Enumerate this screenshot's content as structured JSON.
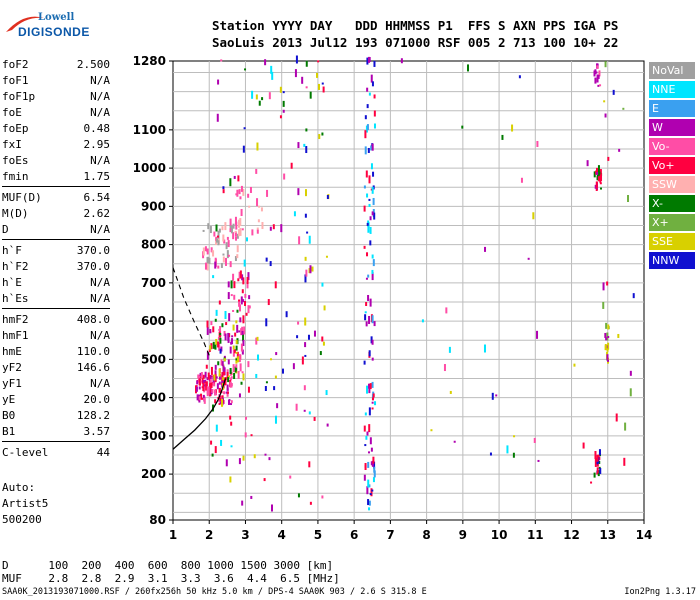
{
  "logo": {
    "line1": "Lowell",
    "line2": "DIGISONDE"
  },
  "header": {
    "labels": "Station YYYY DAY   DDD HHMMSS P1  FFS S AXN PPS IGA PS",
    "values": "SaoLuis 2013 Jul12 193 071000 RSF 005 2 713 100 10+ 22"
  },
  "params": [
    {
      "name": "foF2",
      "value": "2.500"
    },
    {
      "name": "foF1",
      "value": "N/A"
    },
    {
      "name": "foF1p",
      "value": "N/A"
    },
    {
      "name": "foE",
      "value": "N/A"
    },
    {
      "name": "foEp",
      "value": "0.48"
    },
    {
      "name": "fxI",
      "value": "2.95"
    },
    {
      "name": "foEs",
      "value": "N/A"
    },
    {
      "name": "fmin",
      "value": "1.75"
    },
    {
      "sep": true
    },
    {
      "name": "MUF(D)",
      "value": "6.54"
    },
    {
      "name": "M(D)",
      "value": "2.62"
    },
    {
      "name": "D",
      "value": "N/A"
    },
    {
      "sep": true
    },
    {
      "name": "h`F",
      "value": "370.0"
    },
    {
      "name": "h`F2",
      "value": "370.0"
    },
    {
      "name": "h`E",
      "value": "N/A"
    },
    {
      "name": "h`Es",
      "value": "N/A"
    },
    {
      "sep": true
    },
    {
      "name": "hmF2",
      "value": "408.0"
    },
    {
      "name": "hmF1",
      "value": "N/A"
    },
    {
      "name": "hmE",
      "value": "110.0"
    },
    {
      "name": "yF2",
      "value": "146.6"
    },
    {
      "name": "yF1",
      "value": "N/A"
    },
    {
      "name": "yE",
      "value": "20.0"
    },
    {
      "name": "B0",
      "value": "128.2"
    },
    {
      "name": "B1",
      "value": "3.57"
    },
    {
      "sep": true
    },
    {
      "name": "C-level",
      "value": "44"
    }
  ],
  "auto": {
    "line1": "Auto:",
    "line2": "Artist5",
    "line3": "500200"
  },
  "legend": [
    {
      "label": "NoVal",
      "color": "#a0a0a0"
    },
    {
      "label": "NNE",
      "color": "#00e5ff"
    },
    {
      "label": "E",
      "color": "#3aa0f0"
    },
    {
      "label": "W",
      "color": "#b000b0"
    },
    {
      "label": "Vo-",
      "color": "#ff4da6"
    },
    {
      "label": "Vo+",
      "color": "#ff0040"
    },
    {
      "label": "SSW",
      "color": "#ffb0b0"
    },
    {
      "label": "X-",
      "color": "#007a00"
    },
    {
      "label": "X+",
      "color": "#70b040"
    },
    {
      "label": "SSE",
      "color": "#d8d000"
    },
    {
      "label": "NNW",
      "color": "#1010d0"
    }
  ],
  "footer": {
    "line1": "D      100  200  400  600  800 1000 1500 3000 [km]",
    "line2": "MUF    2.8  2.8  2.9  3.1  3.3  3.6  4.4  6.5 [MHz]",
    "line3": "SAA0K_2013193071000.RSF / 260fx256h 50 kHz 5.0 km / DPS-4 SAA0K 903 / 2.6 S 315.8 E",
    "version": "Ion2Png 1.3.17"
  },
  "chart_data": {
    "type": "scatter",
    "title": "",
    "xlabel": "",
    "ylabel": "",
    "xlim": [
      1,
      14
    ],
    "ylim": [
      80,
      1280
    ],
    "xticks": [
      1,
      2,
      3,
      4,
      5,
      6,
      7,
      8,
      9,
      10,
      11,
      12,
      13,
      14
    ],
    "yticks": [
      80,
      200,
      300,
      400,
      500,
      600,
      700,
      800,
      900,
      1000,
      1100,
      1280
    ],
    "grid": true,
    "legend_position": "right",
    "profile_curve": {
      "x": [
        1.0,
        1.3,
        1.6,
        1.9,
        2.1,
        2.25,
        2.35,
        2.45
      ],
      "y": [
        265,
        290,
        315,
        345,
        370,
        395,
        420,
        450
      ]
    },
    "dashed_curve": {
      "x": [
        1.0,
        1.3,
        1.6,
        1.85,
        2.0
      ],
      "y": [
        740,
        660,
        595,
        545,
        510
      ]
    },
    "echo_clusters": [
      {
        "x": [
          1.6,
          2.6
        ],
        "y": [
          380,
          460
        ],
        "density": 120,
        "colors": [
          "#ff0040",
          "#ff4da6",
          "#b000b0"
        ]
      },
      {
        "x": [
          1.9,
          3.0
        ],
        "y": [
          420,
          600
        ],
        "density": 90,
        "colors": [
          "#b000b0",
          "#ff0040",
          "#007a00",
          "#ff4da6",
          "#d8d000"
        ]
      },
      {
        "x": [
          2.5,
          3.2
        ],
        "y": [
          600,
          720
        ],
        "density": 25,
        "colors": [
          "#b000b0",
          "#ff4da6",
          "#ff0040"
        ]
      },
      {
        "x": [
          1.8,
          2.8
        ],
        "y": [
          730,
          850
        ],
        "density": 55,
        "colors": [
          "#ffb0b0",
          "#ff4da6",
          "#a0a0a0"
        ]
      },
      {
        "x": [
          2.7,
          3.5
        ],
        "y": [
          820,
          940
        ],
        "density": 25,
        "colors": [
          "#ffb0b0",
          "#ff4da6"
        ]
      },
      {
        "x": [
          6.25,
          6.55
        ],
        "y": [
          90,
          1280
        ],
        "density": 110,
        "colors": [
          "#00e5ff",
          "#3aa0f0",
          "#b000b0",
          "#ff0040",
          "#1010d0"
        ]
      },
      {
        "x": [
          12.6,
          12.8
        ],
        "y": [
          940,
          990
        ],
        "density": 25,
        "colors": [
          "#ff0040",
          "#007a00",
          "#b000b0"
        ]
      },
      {
        "x": [
          12.6,
          12.8
        ],
        "y": [
          190,
          250
        ],
        "density": 20,
        "colors": [
          "#ff0040",
          "#007a00",
          "#1010d0"
        ]
      },
      {
        "x": [
          12.9,
          13.0
        ],
        "y": [
          480,
          580
        ],
        "density": 18,
        "colors": [
          "#d8d000",
          "#70b040",
          "#b000b0"
        ]
      },
      {
        "x": [
          12.6,
          12.8
        ],
        "y": [
          1200,
          1270
        ],
        "density": 15,
        "colors": [
          "#ff4da6",
          "#b000b0"
        ]
      },
      {
        "x": [
          2.0,
          5.3
        ],
        "y": [
          90,
          1280
        ],
        "density": 160,
        "colors": [
          "#1010d0",
          "#b000b0",
          "#ff0040",
          "#00e5ff",
          "#007a00",
          "#d8d000",
          "#ff4da6"
        ]
      },
      {
        "x": [
          6.9,
          11.2
        ],
        "y": [
          150,
          1280
        ],
        "density": 28,
        "colors": [
          "#1010d0",
          "#b000b0",
          "#00e5ff",
          "#d8d000",
          "#ff4da6",
          "#007a00"
        ]
      },
      {
        "x": [
          11.9,
          14.0
        ],
        "y": [
          150,
          1280
        ],
        "density": 22,
        "colors": [
          "#d8d000",
          "#1010d0",
          "#b000b0",
          "#ff0040",
          "#70b040"
        ]
      }
    ]
  }
}
